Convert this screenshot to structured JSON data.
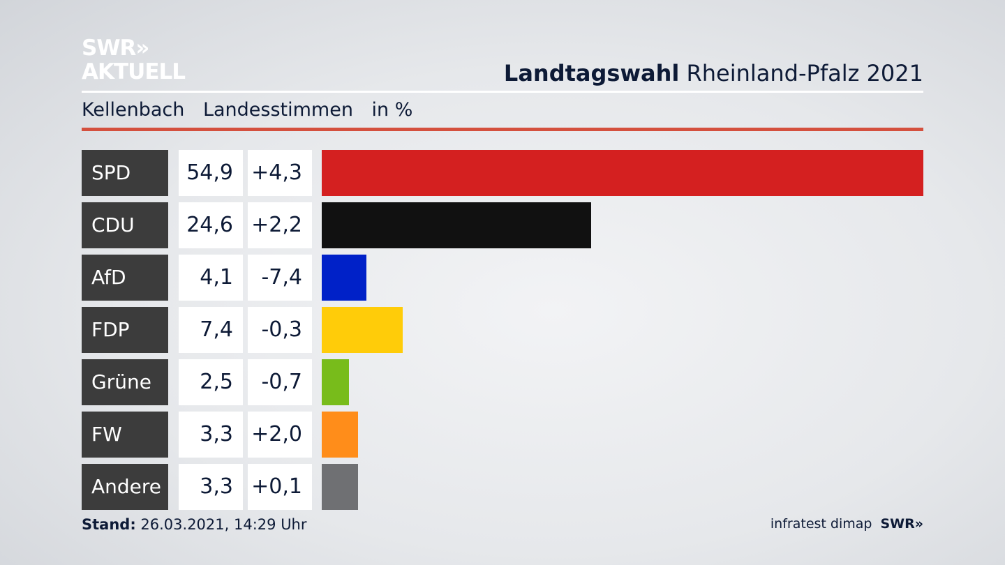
{
  "header": {
    "logo_line1": "SWR»",
    "logo_line2": "AKTUELL",
    "title_bold": "Landtagswahl",
    "title_rest": "Rheinland-Pfalz 2021"
  },
  "subtitle": {
    "place": "Kellenbach",
    "vote_type": "Landesstimmen",
    "unit": "in %"
  },
  "chart_data": {
    "type": "bar",
    "categories": [
      "SPD",
      "CDU",
      "AfD",
      "FDP",
      "Grüne",
      "FW",
      "Andere"
    ],
    "values": [
      54.9,
      24.6,
      4.1,
      7.4,
      2.5,
      3.3,
      3.3
    ],
    "values_label": [
      "54,9",
      "24,6",
      "4,1",
      "7,4",
      "2,5",
      "3,3",
      "3,3"
    ],
    "diff_label": [
      "+4,3",
      "+2,2",
      "-7,4",
      "-0,3",
      "-0,7",
      "+2,0",
      "+0,1"
    ],
    "colors": [
      "#d42020",
      "#111111",
      "#0021c8",
      "#ffcc09",
      "#78bc1b",
      "#ff8d1a",
      "#6f7073"
    ],
    "orientation": "horizontal"
  },
  "footer": {
    "stand_label": "Stand:",
    "stand_value": "26.03.2021, 14:29 Uhr",
    "source": "infratest dimap",
    "brand": "SWR»"
  }
}
